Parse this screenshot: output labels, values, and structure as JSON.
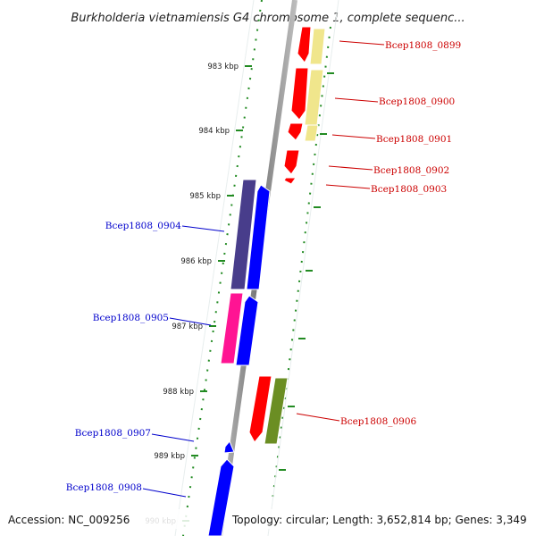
{
  "title": "Burkholderia vietnamiensis G4 chromosome 1, complete sequenc...",
  "accession_text": "Accession: NC_009256",
  "topology_text": "Topology: circular; Length: 3,652,814 bp; Genes: 3,349",
  "kbp_ticks": [
    "983 kbp",
    "984 kbp",
    "985 kbp",
    "986 kbp",
    "987 kbp",
    "988 kbp",
    "989 kbp",
    "990 kbp"
  ],
  "genes_right": [
    "Bcep1808_0899",
    "Bcep1808_0900",
    "Bcep1808_0901",
    "Bcep1808_0902",
    "Bcep1808_0903",
    "Bcep1808_0906"
  ],
  "genes_left": [
    "Bcep1808_0904",
    "Bcep1808_0905",
    "Bcep1808_0907",
    "Bcep1808_0908"
  ],
  "colors": {
    "red_gene": "#ff0000",
    "pale_yellow_gene": "#f0e68c",
    "blue_gene": "#0000ff",
    "dark_slate_gene": "#483d8b",
    "magenta_gene": "#ff1493",
    "olive_gene": "#6b8e23",
    "right_label": "#cc0000",
    "left_label": "#0000cc",
    "tick_green": "#228b22",
    "backbone": "#888888"
  }
}
